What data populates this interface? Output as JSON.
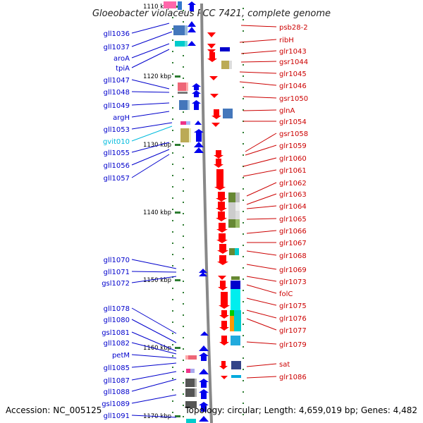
{
  "title": "Gloeobacter violaceus PCC 7421, complete genome",
  "footer": {
    "accession": "Accession: NC_005125",
    "topology": "Topology: circular; Length: 4,659,019 bp; Genes: 4,482"
  },
  "colors": {
    "left_label": "#0000cc",
    "right_label": "#cc0000",
    "cyan_label": "#00bbdd",
    "axis_tick": "#2e7d32",
    "backbone": "#888888"
  },
  "ticks": [
    "1110 kbp",
    "1120 kbp",
    "1130 kbp",
    "1140 kbp",
    "1150 kbp",
    "1160 kbp",
    "1170 kbp"
  ],
  "left_labels": [
    {
      "text": "gll1036",
      "color": "blue"
    },
    {
      "text": "gll1037",
      "color": "blue"
    },
    {
      "text": "aroA",
      "color": "blue"
    },
    {
      "text": "tpiA",
      "color": "blue"
    },
    {
      "text": "gll1047",
      "color": "blue"
    },
    {
      "text": "gll1048",
      "color": "blue"
    },
    {
      "text": "gll1049",
      "color": "blue"
    },
    {
      "text": "argH",
      "color": "blue"
    },
    {
      "text": "gll1053",
      "color": "blue"
    },
    {
      "text": "gvit010",
      "color": "cyan"
    },
    {
      "text": "gll1055",
      "color": "blue"
    },
    {
      "text": "gll1056",
      "color": "blue"
    },
    {
      "text": "gll1057",
      "color": "blue"
    },
    {
      "text": "gll1070",
      "color": "blue"
    },
    {
      "text": "gll1071",
      "color": "blue"
    },
    {
      "text": "gsl1072",
      "color": "blue"
    },
    {
      "text": "gll1078",
      "color": "blue"
    },
    {
      "text": "gll1080",
      "color": "blue"
    },
    {
      "text": "gsl1081",
      "color": "blue"
    },
    {
      "text": "gll1082",
      "color": "blue"
    },
    {
      "text": "petM",
      "color": "blue"
    },
    {
      "text": "gll1085",
      "color": "blue"
    },
    {
      "text": "gll1087",
      "color": "blue"
    },
    {
      "text": "gll1088",
      "color": "blue"
    },
    {
      "text": "gsl1089",
      "color": "blue"
    },
    {
      "text": "gll1091",
      "color": "blue"
    }
  ],
  "right_labels": [
    {
      "text": "psb28-2"
    },
    {
      "text": "ribH"
    },
    {
      "text": "glr1043"
    },
    {
      "text": "gsr1044"
    },
    {
      "text": "glr1045"
    },
    {
      "text": "glr1046"
    },
    {
      "text": "gsr1050"
    },
    {
      "text": "glnA"
    },
    {
      "text": "glr1054"
    },
    {
      "text": "gsr1058"
    },
    {
      "text": "glr1059"
    },
    {
      "text": "glr1060"
    },
    {
      "text": "glr1061"
    },
    {
      "text": "glr1062"
    },
    {
      "text": "glr1063"
    },
    {
      "text": "glr1064"
    },
    {
      "text": "glr1065"
    },
    {
      "text": "glr1066"
    },
    {
      "text": "glr1067"
    },
    {
      "text": "glr1068"
    },
    {
      "text": "glr1069"
    },
    {
      "text": "glr1073"
    },
    {
      "text": "folC"
    },
    {
      "text": "glr1075"
    },
    {
      "text": "glr1076"
    },
    {
      "text": "glr1077"
    },
    {
      "text": "glr1079"
    },
    {
      "text": "sat"
    },
    {
      "text": "glr1086"
    }
  ]
}
